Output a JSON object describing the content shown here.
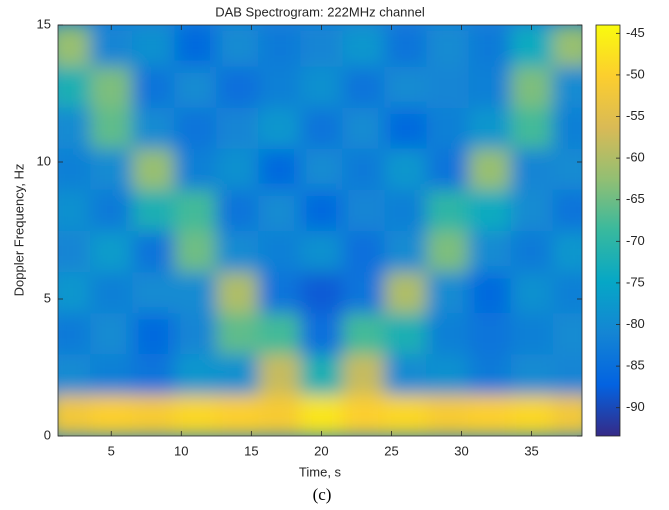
{
  "chart_data": {
    "type": "heatmap",
    "title": "DAB Spectrogram: 222MHz channel",
    "x_label": "Time, s",
    "y_label": "Doppler Frequency, Hz",
    "caption": "(c)",
    "x": [
      2,
      5,
      8,
      11,
      14,
      17,
      20,
      23,
      26,
      29,
      32,
      35,
      38
    ],
    "y": [
      0.75,
      2.25,
      3.75,
      5.25,
      6.75,
      8.25,
      9.75,
      11.25,
      12.75,
      14.25
    ],
    "z": [
      [
        -52,
        -50,
        -51,
        -49,
        -50,
        -51,
        -47,
        -50,
        -49,
        -51,
        -50,
        -49,
        -52
      ],
      [
        -80,
        -82,
        -84,
        -78,
        -79,
        -58,
        -72,
        -58,
        -80,
        -79,
        -83,
        -80,
        -81
      ],
      [
        -83,
        -80,
        -86,
        -81,
        -66,
        -68,
        -85,
        -68,
        -72,
        -82,
        -84,
        -82,
        -80
      ],
      [
        -78,
        -82,
        -80,
        -80,
        -60,
        -84,
        -88,
        -84,
        -60,
        -80,
        -86,
        -79,
        -82
      ],
      [
        -81,
        -77,
        -84,
        -65,
        -80,
        -82,
        -79,
        -85,
        -80,
        -64,
        -80,
        -83,
        -78
      ],
      [
        -79,
        -83,
        -72,
        -68,
        -84,
        -80,
        -86,
        -81,
        -82,
        -70,
        -74,
        -80,
        -84
      ],
      [
        -82,
        -80,
        -62,
        -82,
        -79,
        -86,
        -80,
        -83,
        -78,
        -84,
        -62,
        -81,
        -80
      ],
      [
        -80,
        -66,
        -80,
        -84,
        -81,
        -78,
        -84,
        -80,
        -86,
        -82,
        -78,
        -68,
        -82
      ],
      [
        -72,
        -64,
        -84,
        -80,
        -85,
        -82,
        -79,
        -84,
        -80,
        -81,
        -82,
        -64,
        -80
      ],
      [
        -62,
        -81,
        -79,
        -86,
        -80,
        -83,
        -81,
        -78,
        -84,
        -80,
        -83,
        -74,
        -62
      ]
    ],
    "xlim": [
      1.2,
      38.6
    ],
    "ylim": [
      0,
      15
    ],
    "xticks": [
      5,
      10,
      15,
      20,
      25,
      30,
      35
    ],
    "yticks": [
      0,
      5,
      10,
      15
    ],
    "clim": [
      -93.4,
      -44
    ],
    "cticks": [
      -90,
      -85,
      -80,
      -75,
      -70,
      -65,
      -60,
      -55,
      -50,
      -45
    ],
    "colormap": [
      "#352a87",
      "#0363e1",
      "#1485d4",
      "#06a7c6",
      "#38b99e",
      "#92bf73",
      "#d9ba56",
      "#fcce2e",
      "#f9fb0e"
    ]
  }
}
